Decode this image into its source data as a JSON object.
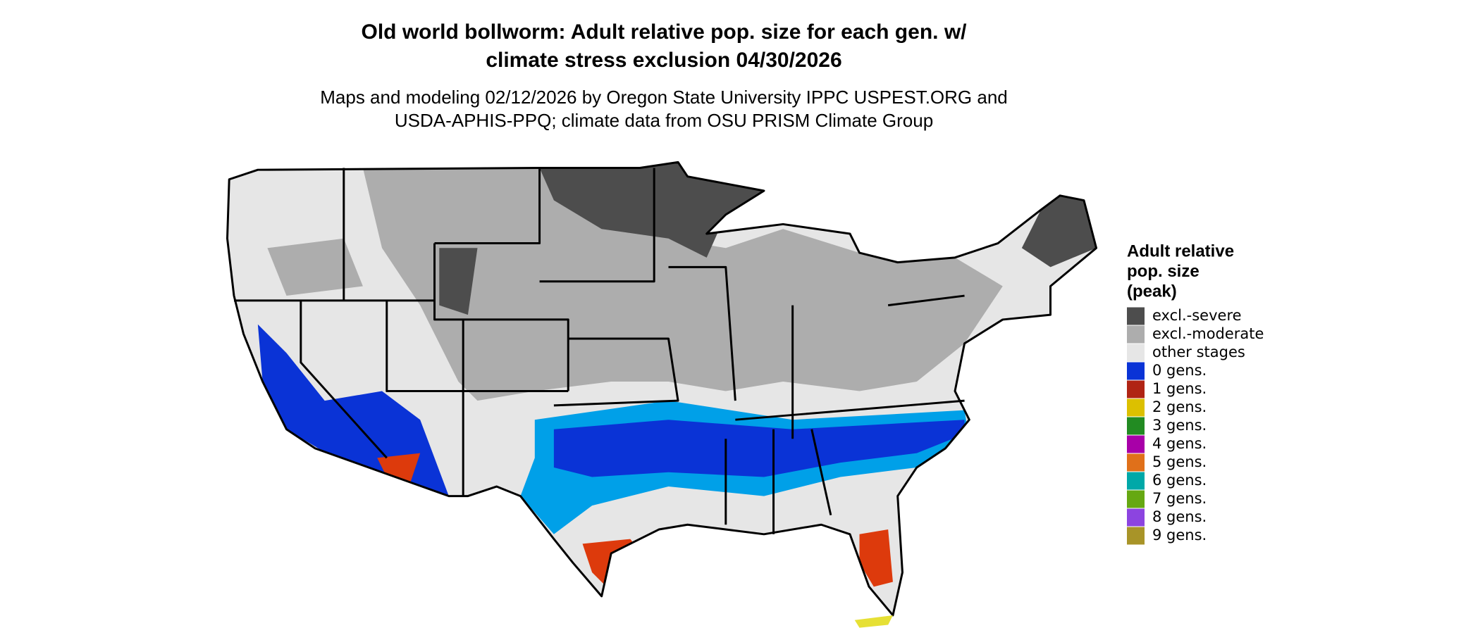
{
  "header": {
    "title_lines": [
      "Old world bollworm: Adult relative pop. size for each gen. w/",
      "climate stress exclusion 04/30/2026"
    ],
    "subtitle_lines": [
      "Maps and modeling 02/12/2026 by Oregon State University IPPC USPEST.ORG and",
      "USDA-APHIS-PPQ; climate data from OSU PRISM Climate Group"
    ]
  },
  "legend": {
    "title_lines": [
      "Adult relative",
      "pop. size",
      "(peak)"
    ],
    "items": [
      {
        "label": "excl.-severe",
        "color": "#4d4d4d"
      },
      {
        "label": "excl.-moderate",
        "color": "#adadad"
      },
      {
        "label": "other stages",
        "color": "#e6e6e6"
      },
      {
        "label": "0 gens.",
        "color": "#0a33d6"
      },
      {
        "label": "1 gens.",
        "color": "#b02414"
      },
      {
        "label": "2 gens.",
        "color": "#dcc000"
      },
      {
        "label": "3 gens.",
        "color": "#228b22"
      },
      {
        "label": "4 gens.",
        "color": "#a800a8"
      },
      {
        "label": "5 gens.",
        "color": "#e0701a"
      },
      {
        "label": "6 gens.",
        "color": "#00a8a8"
      },
      {
        "label": "7 gens.",
        "color": "#66a812"
      },
      {
        "label": "8 gens.",
        "color": "#8c44e0"
      },
      {
        "label": "9 gens.",
        "color": "#a89428"
      }
    ]
  }
}
